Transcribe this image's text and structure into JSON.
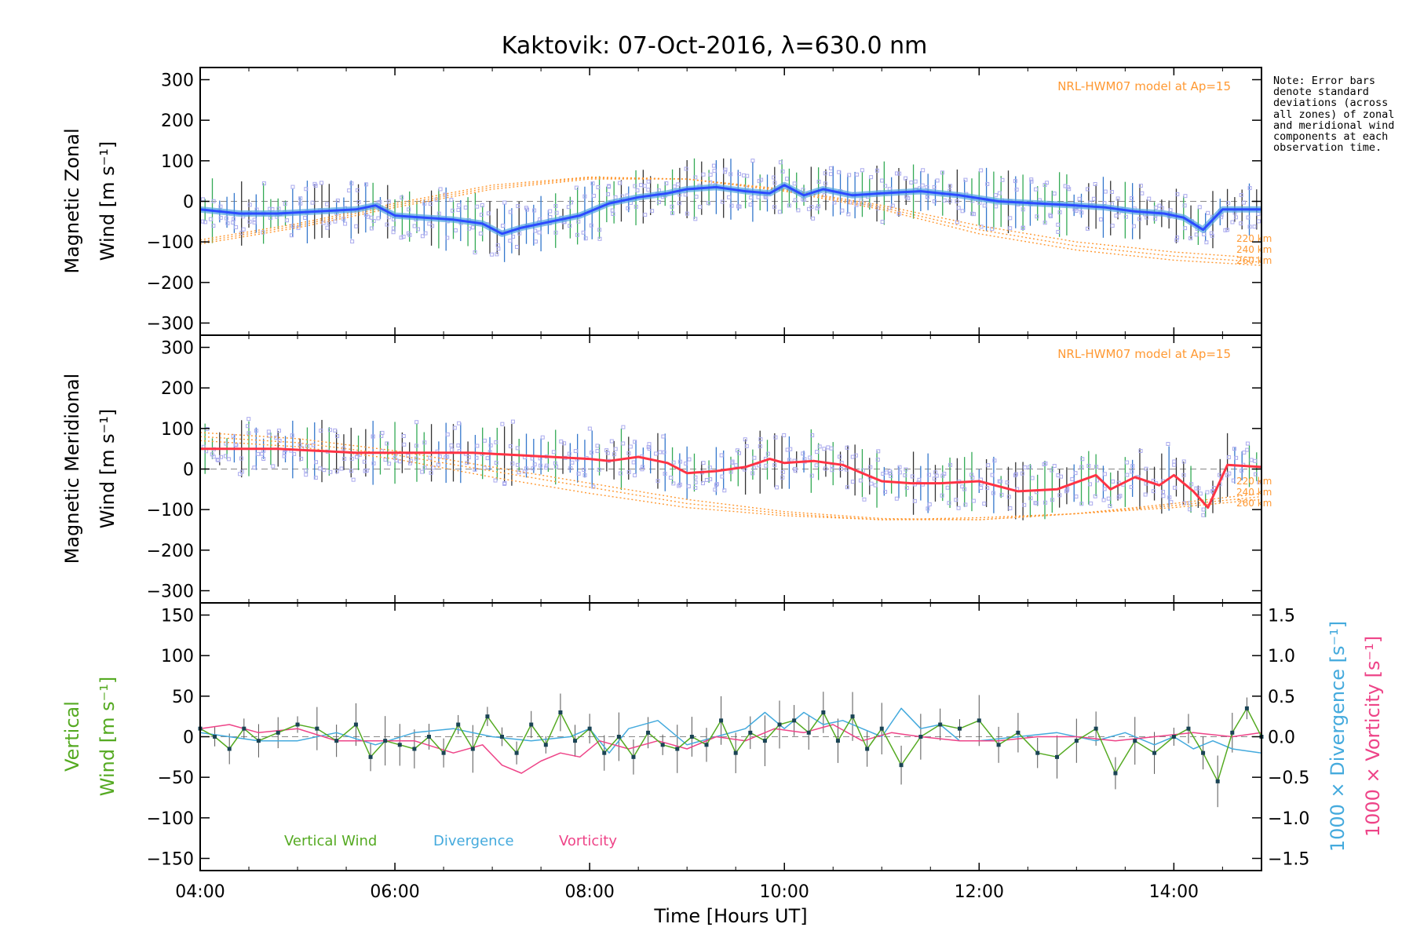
{
  "title": "Kaktovik: 07-Oct-2016, λ=630.0 nm",
  "note": "Note: Error bars denote standard deviations (across all zones) of zonal and meridional wind components at each observation time.",
  "colors": {
    "zonal": "#2b4bff",
    "zonal_band": "#4fa3e0",
    "meridional": "#ff3344",
    "model": "#ff9933",
    "samples": "#aaaaee",
    "vertical": "#55aa22",
    "divergence": "#44aadd",
    "vorticity": "#ee4488",
    "errorbar": "#555555",
    "zeroline": "#888888"
  },
  "xaxis": {
    "label": "Time [Hours UT]",
    "range": [
      4.0,
      14.9
    ],
    "ticks": [
      4,
      6,
      8,
      10,
      12,
      14
    ],
    "tick_labels": [
      "04:00",
      "06:00",
      "08:00",
      "10:00",
      "12:00",
      "14:00"
    ]
  },
  "chart_data": [
    {
      "type": "line",
      "panel": "zonal",
      "ylabel_line1": "Magnetic Zonal",
      "ylabel_line2": "Wind [m s⁻¹]",
      "ylim": [
        -330,
        330
      ],
      "yticks": [
        300,
        200,
        100,
        0,
        -100,
        -200,
        -300
      ],
      "ytick_labels": [
        "300",
        "200",
        "100",
        "0",
        "−100",
        "−200",
        "−300"
      ],
      "model_label": "NRL-HWM07 model at Ap=15",
      "model_levels": [
        "220 km",
        "240 km",
        "260 km"
      ],
      "series": [
        {
          "x": [
            4.0,
            4.4,
            4.8,
            5.2,
            5.6,
            5.8,
            6.0,
            6.3,
            6.6,
            6.9,
            7.1,
            7.3,
            7.6,
            7.9,
            8.2,
            8.5,
            8.8,
            9.0,
            9.3,
            9.6,
            9.85,
            10.0,
            10.2,
            10.4,
            10.7,
            11.0,
            11.4,
            11.8,
            12.2,
            12.6,
            13.0,
            13.3,
            13.6,
            13.9,
            14.1,
            14.3,
            14.5,
            14.9
          ],
          "y": [
            -20,
            -30,
            -30,
            -25,
            -20,
            -10,
            -35,
            -40,
            -45,
            -55,
            -80,
            -65,
            -50,
            -35,
            -5,
            10,
            20,
            30,
            35,
            25,
            20,
            40,
            15,
            30,
            15,
            20,
            25,
            15,
            0,
            -5,
            -10,
            -15,
            -25,
            -30,
            -40,
            -70,
            -20,
            -20
          ]
        },
        {
          "model": "220 km",
          "x": [
            4.0,
            5.0,
            6.0,
            7.0,
            8.0,
            9.0,
            10.0,
            11.0,
            12.0,
            13.0,
            14.0,
            14.9
          ],
          "y": [
            -95,
            -55,
            -5,
            40,
            60,
            55,
            30,
            -10,
            -60,
            -100,
            -125,
            -140
          ]
        },
        {
          "model": "240 km",
          "x": [
            4.0,
            5.0,
            6.0,
            7.0,
            8.0,
            9.0,
            10.0,
            11.0,
            12.0,
            13.0,
            14.0,
            14.9
          ],
          "y": [
            -100,
            -60,
            -10,
            35,
            58,
            55,
            28,
            -15,
            -70,
            -110,
            -135,
            -150
          ]
        },
        {
          "model": "260 km",
          "x": [
            4.0,
            5.0,
            6.0,
            7.0,
            8.0,
            9.0,
            10.0,
            11.0,
            12.0,
            13.0,
            14.0,
            14.9
          ],
          "y": [
            -105,
            -65,
            -15,
            30,
            55,
            55,
            25,
            -20,
            -80,
            -120,
            -145,
            -158
          ]
        }
      ]
    },
    {
      "type": "line",
      "panel": "meridional",
      "ylabel_line1": "Magnetic Meridional",
      "ylabel_line2": "Wind [m s⁻¹]",
      "ylim": [
        -330,
        330
      ],
      "yticks": [
        300,
        200,
        100,
        0,
        -100,
        -200,
        -300
      ],
      "ytick_labels": [
        "300",
        "200",
        "100",
        "0",
        "−100",
        "−200",
        "−300"
      ],
      "model_label": "NRL-HWM07 model at Ap=15",
      "model_levels": [
        "220 km",
        "240 km",
        "260 km"
      ],
      "series": [
        {
          "x": [
            4.0,
            4.4,
            4.8,
            5.2,
            5.6,
            6.0,
            6.4,
            6.8,
            7.2,
            7.6,
            8.0,
            8.2,
            8.5,
            8.8,
            9.0,
            9.3,
            9.6,
            9.85,
            10.0,
            10.3,
            10.6,
            10.8,
            11.0,
            11.3,
            11.6,
            12.0,
            12.4,
            12.8,
            13.2,
            13.35,
            13.6,
            13.85,
            14.0,
            14.2,
            14.35,
            14.55,
            14.9
          ],
          "y": [
            50,
            50,
            50,
            45,
            40,
            40,
            40,
            40,
            35,
            30,
            25,
            20,
            30,
            15,
            -10,
            -5,
            5,
            25,
            15,
            20,
            10,
            -10,
            -30,
            -35,
            -35,
            -30,
            -55,
            -50,
            -15,
            -50,
            -20,
            -40,
            -15,
            -55,
            -95,
            10,
            5
          ]
        },
        {
          "model": "220 km",
          "x": [
            4.0,
            5.0,
            6.0,
            7.0,
            8.0,
            9.0,
            10.0,
            11.0,
            12.0,
            13.0,
            14.0,
            14.9
          ],
          "y": [
            70,
            55,
            25,
            -20,
            -60,
            -95,
            -115,
            -125,
            -120,
            -110,
            -95,
            -75
          ]
        },
        {
          "model": "240 km",
          "x": [
            4.0,
            5.0,
            6.0,
            7.0,
            8.0,
            9.0,
            10.0,
            11.0,
            12.0,
            13.0,
            14.0,
            14.9
          ],
          "y": [
            80,
            65,
            35,
            -5,
            -45,
            -85,
            -110,
            -125,
            -125,
            -110,
            -90,
            -68
          ]
        },
        {
          "model": "260 km",
          "x": [
            4.0,
            5.0,
            6.0,
            7.0,
            8.0,
            9.0,
            10.0,
            11.0,
            12.0,
            13.0,
            14.0,
            14.9
          ],
          "y": [
            90,
            75,
            45,
            5,
            -35,
            -75,
            -105,
            -122,
            -125,
            -110,
            -85,
            -60
          ]
        }
      ]
    },
    {
      "type": "line",
      "panel": "vertical",
      "ylabel_line1": "Vertical",
      "ylabel_line2": "Wind [m s⁻¹]",
      "y2label_div": "1000 × Divergence [s⁻¹]",
      "y2label_vort": "1000 × Vorticity [s⁻¹]",
      "ylim": [
        -165,
        165
      ],
      "yticks": [
        150,
        100,
        50,
        0,
        -50,
        -100,
        -150
      ],
      "ytick_labels": [
        "150",
        "100",
        "50",
        "0",
        "−50",
        "−100",
        "−150"
      ],
      "y2lim": [
        -1.65,
        1.65
      ],
      "y2ticks": [
        1.5,
        1.0,
        0.5,
        0.0,
        -0.5,
        -1.0,
        -1.5
      ],
      "y2tick_labels": [
        "1.5",
        "1.0",
        "0.5",
        "0.0",
        "−0.5",
        "−1.0",
        "−1.5"
      ],
      "legend": [
        "Vertical Wind",
        "Divergence",
        "Vorticity"
      ],
      "series": [
        {
          "name": "Vertical Wind",
          "x": [
            4.0,
            4.15,
            4.3,
            4.45,
            4.6,
            4.8,
            5.0,
            5.2,
            5.4,
            5.6,
            5.75,
            5.9,
            6.05,
            6.2,
            6.35,
            6.5,
            6.65,
            6.8,
            6.95,
            7.1,
            7.25,
            7.4,
            7.55,
            7.7,
            7.85,
            8.0,
            8.15,
            8.3,
            8.45,
            8.6,
            8.75,
            8.9,
            9.05,
            9.2,
            9.35,
            9.5,
            9.65,
            9.8,
            9.95,
            10.1,
            10.25,
            10.4,
            10.55,
            10.7,
            10.85,
            11.0,
            11.2,
            11.4,
            11.6,
            11.8,
            12.0,
            12.2,
            12.4,
            12.6,
            12.8,
            13.0,
            13.2,
            13.4,
            13.6,
            13.8,
            14.0,
            14.15,
            14.3,
            14.45,
            14.6,
            14.75,
            14.9
          ],
          "y": [
            10,
            0,
            -15,
            10,
            -5,
            5,
            15,
            10,
            -5,
            15,
            -25,
            -5,
            -10,
            -15,
            0,
            -20,
            15,
            -15,
            25,
            0,
            -20,
            15,
            -10,
            30,
            -5,
            10,
            -20,
            0,
            -25,
            5,
            -10,
            -15,
            0,
            -10,
            20,
            -20,
            5,
            -5,
            15,
            20,
            5,
            30,
            -5,
            25,
            -15,
            10,
            -35,
            0,
            15,
            10,
            20,
            -10,
            5,
            -20,
            -25,
            -5,
            10,
            -45,
            -5,
            -20,
            0,
            10,
            -20,
            -55,
            5,
            35,
            0
          ]
        },
        {
          "name": "Divergence",
          "x": [
            4.0,
            4.3,
            4.6,
            5.0,
            5.4,
            5.8,
            6.2,
            6.6,
            7.0,
            7.4,
            7.8,
            8.0,
            8.2,
            8.4,
            8.7,
            9.0,
            9.3,
            9.6,
            9.8,
            10.0,
            10.2,
            10.4,
            10.6,
            10.8,
            11.0,
            11.2,
            11.4,
            11.6,
            11.8,
            12.0,
            12.4,
            12.8,
            13.2,
            13.5,
            13.8,
            14.0,
            14.2,
            14.4,
            14.6,
            14.9
          ],
          "y": [
            0.05,
            0.0,
            -0.05,
            -0.05,
            0.05,
            -0.1,
            0.05,
            0.1,
            0.0,
            -0.05,
            0.0,
            0.1,
            -0.2,
            0.1,
            0.2,
            -0.1,
            0.0,
            0.1,
            0.3,
            0.1,
            0.3,
            0.15,
            0.2,
            0.1,
            0.0,
            0.35,
            0.1,
            0.15,
            -0.05,
            -0.05,
            0.0,
            0.05,
            -0.05,
            0.05,
            -0.1,
            0.0,
            -0.15,
            -0.05,
            -0.15,
            -0.2
          ]
        },
        {
          "name": "Vorticity",
          "x": [
            4.0,
            4.3,
            4.6,
            5.0,
            5.4,
            5.8,
            6.2,
            6.6,
            6.9,
            7.1,
            7.3,
            7.5,
            7.7,
            7.9,
            8.1,
            8.4,
            8.7,
            9.0,
            9.3,
            9.6,
            9.9,
            10.2,
            10.5,
            10.8,
            11.1,
            11.4,
            11.8,
            12.2,
            12.6,
            13.0,
            13.4,
            13.8,
            14.2,
            14.6,
            14.9
          ],
          "y": [
            0.1,
            0.15,
            0.05,
            0.1,
            -0.05,
            -0.05,
            -0.05,
            -0.2,
            -0.1,
            -0.35,
            -0.45,
            -0.3,
            -0.2,
            -0.25,
            -0.05,
            -0.15,
            -0.05,
            -0.15,
            0.0,
            -0.05,
            0.1,
            0.05,
            0.15,
            -0.05,
            0.05,
            0.0,
            -0.05,
            -0.05,
            0.0,
            0.0,
            -0.05,
            0.0,
            0.05,
            0.0,
            0.05
          ]
        }
      ]
    }
  ]
}
